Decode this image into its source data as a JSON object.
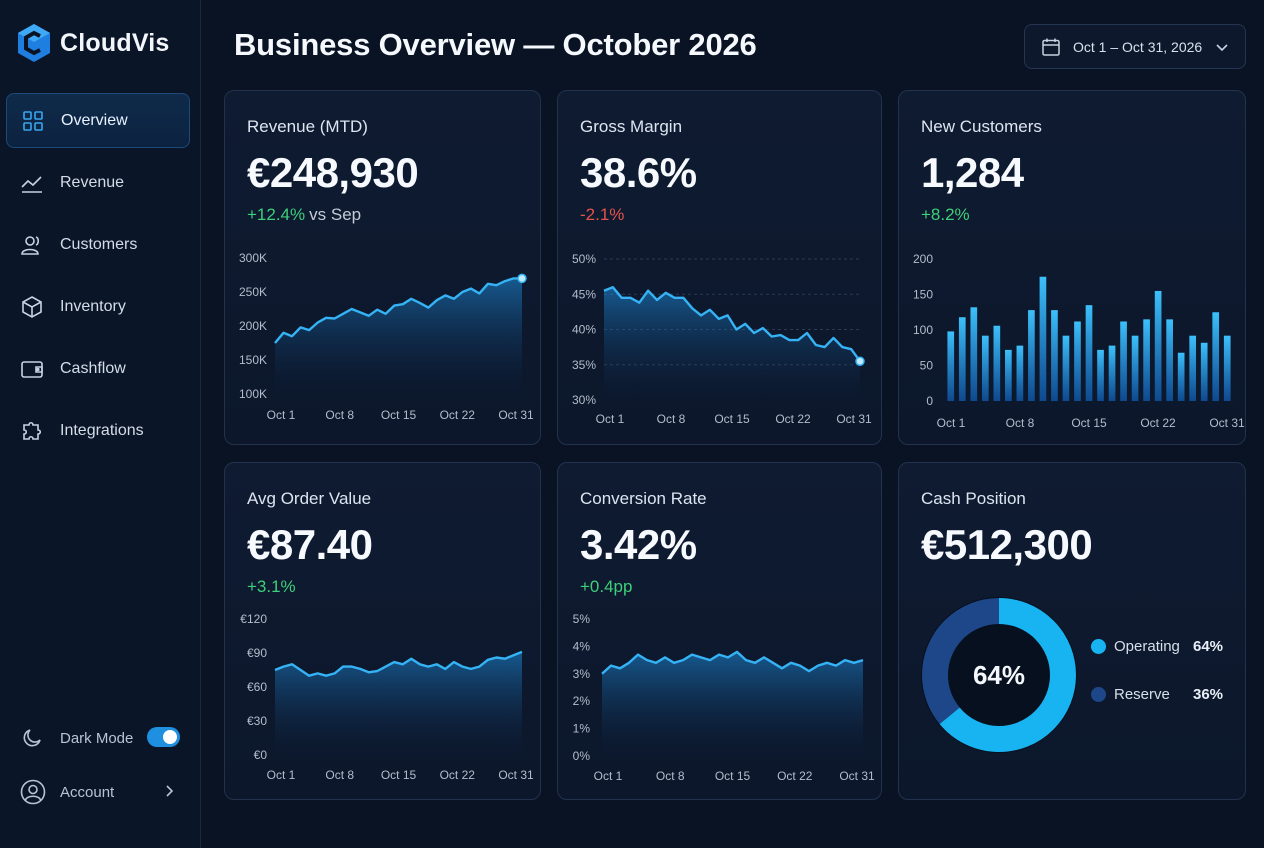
{
  "app": {
    "name": "CloudVis"
  },
  "header": {
    "title": "Business Overview — October 2026",
    "date_range": "Oct 1 – Oct 31, 2026"
  },
  "sidebar": {
    "items": [
      {
        "label": "Overview",
        "icon": "grid-icon",
        "active": true
      },
      {
        "label": "Revenue",
        "icon": "trend-icon"
      },
      {
        "label": "Customers",
        "icon": "users-icon"
      },
      {
        "label": "Inventory",
        "icon": "box-icon"
      },
      {
        "label": "Cashflow",
        "icon": "wallet-icon"
      },
      {
        "label": "Integrations",
        "icon": "puzzle-icon"
      }
    ],
    "dark_mode_label": "Dark Mode",
    "dark_mode_on": true,
    "account_label": "Account"
  },
  "cards": {
    "revenue": {
      "title": "Revenue (MTD)",
      "value": "€248,930",
      "delta": "+12.4%",
      "compare": "vs Sep"
    },
    "margin": {
      "title": "Gross Margin",
      "value": "38.6%",
      "delta": "-2.1%"
    },
    "customers": {
      "title": "New Customers",
      "value": "1,284",
      "delta": "+8.2%"
    },
    "aov": {
      "title": "Avg Order Value",
      "value": "€87.40",
      "delta": "+3.1%"
    },
    "conversion": {
      "title": "Conversion Rate",
      "value": "3.42%",
      "delta": "+0.4pp"
    },
    "cash": {
      "title": "Cash Position",
      "value": "€512,300",
      "center_label": "64%"
    }
  },
  "chart_data": [
    {
      "id": "revenue",
      "type": "area",
      "x_ticks": [
        "Oct 1",
        "Oct 8",
        "Oct 15",
        "Oct 22",
        "Oct 31"
      ],
      "y_ticks": [
        "300K",
        "250K",
        "200K",
        "150K",
        "100K"
      ],
      "ylim": [
        100000,
        300000
      ],
      "values": [
        175000,
        190000,
        185000,
        198000,
        194000,
        205000,
        212000,
        211000,
        218000,
        225000,
        220000,
        215000,
        224000,
        218000,
        230000,
        232000,
        240000,
        234000,
        227000,
        238000,
        245000,
        240000,
        250000,
        255000,
        248000,
        262000,
        260000,
        266000,
        270000,
        270000
      ]
    },
    {
      "id": "margin",
      "type": "area",
      "x_ticks": [
        "Oct 1",
        "Oct 8",
        "Oct 15",
        "Oct 22",
        "Oct 31"
      ],
      "y_ticks": [
        "50%",
        "45%",
        "40%",
        "35%",
        "30%"
      ],
      "ylim": [
        30,
        50
      ],
      "values": [
        45.5,
        46,
        44.5,
        44.5,
        43.8,
        45.5,
        44.2,
        45.2,
        44.5,
        44.5,
        43,
        42,
        42.8,
        41.5,
        42,
        40,
        40.8,
        39.5,
        40.2,
        39,
        39.2,
        38.5,
        38.5,
        39.5,
        37.8,
        37.5,
        38.8,
        37.5,
        37.2,
        35.5
      ]
    },
    {
      "id": "customers",
      "type": "bar",
      "x_ticks": [
        "Oct 1",
        "Oct 8",
        "Oct 15",
        "Oct 22",
        "Oct 31"
      ],
      "y_ticks": [
        "200",
        "150",
        "100",
        "50",
        "0"
      ],
      "ylim": [
        0,
        200
      ],
      "values": [
        98,
        118,
        132,
        92,
        106,
        72,
        78,
        128,
        175,
        128,
        92,
        112,
        135,
        72,
        78,
        112,
        92,
        115,
        155,
        115,
        68,
        92,
        82,
        125,
        92
      ]
    },
    {
      "id": "aov",
      "type": "area",
      "x_ticks": [
        "Oct 1",
        "Oct 8",
        "Oct 15",
        "Oct 22",
        "Oct 31"
      ],
      "y_ticks": [
        "€120",
        "€90",
        "€60",
        "€30",
        "€0"
      ],
      "ylim": [
        0,
        120
      ],
      "values": [
        75,
        78,
        80,
        75,
        70,
        72,
        70,
        72,
        78,
        78,
        76,
        73,
        74,
        78,
        82,
        80,
        85,
        80,
        78,
        80,
        76,
        82,
        78,
        76,
        78,
        84,
        86,
        85,
        88,
        91
      ]
    },
    {
      "id": "conversion",
      "type": "area",
      "x_ticks": [
        "Oct 1",
        "Oct 8",
        "Oct 15",
        "Oct 22",
        "Oct 31"
      ],
      "y_ticks": [
        "5%",
        "4%",
        "3%",
        "2%",
        "1%",
        "0%"
      ],
      "ylim": [
        0,
        5
      ],
      "values": [
        3.0,
        3.3,
        3.2,
        3.4,
        3.7,
        3.5,
        3.4,
        3.6,
        3.4,
        3.5,
        3.7,
        3.6,
        3.5,
        3.7,
        3.6,
        3.8,
        3.5,
        3.4,
        3.6,
        3.4,
        3.2,
        3.4,
        3.3,
        3.1,
        3.3,
        3.4,
        3.3,
        3.5,
        3.4,
        3.5
      ]
    },
    {
      "id": "cash",
      "type": "pie",
      "series": [
        {
          "name": "Operating",
          "value": 64,
          "label": "64%",
          "color": "#18b4f2"
        },
        {
          "name": "Reserve",
          "value": 36,
          "label": "36%",
          "color": "#1d4788"
        }
      ]
    }
  ]
}
